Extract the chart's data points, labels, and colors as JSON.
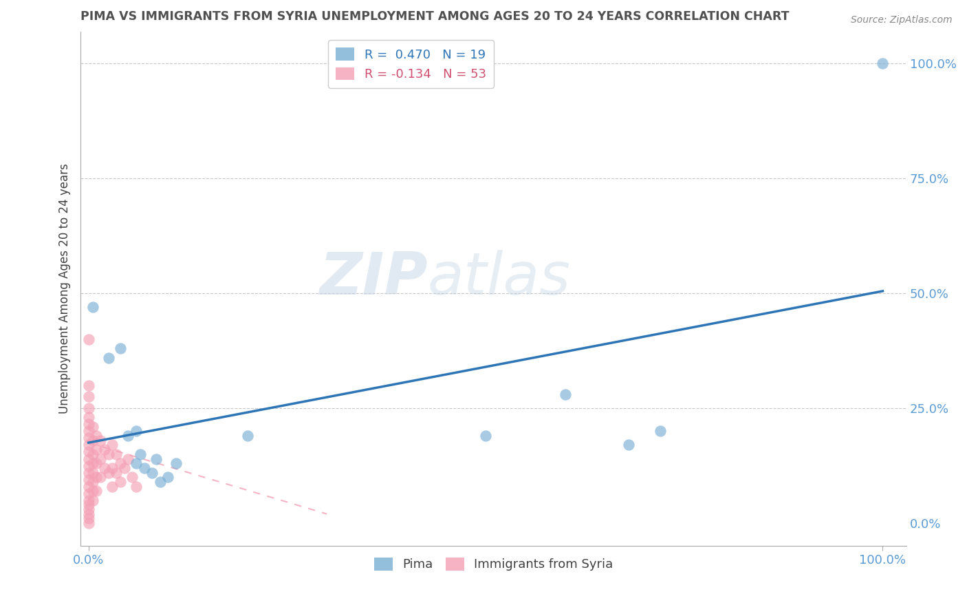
{
  "title": "PIMA VS IMMIGRANTS FROM SYRIA UNEMPLOYMENT AMONG AGES 20 TO 24 YEARS CORRELATION CHART",
  "source": "Source: ZipAtlas.com",
  "ylabel": "Unemployment Among Ages 20 to 24 years",
  "watermark": "ZIPatlas",
  "pima_points": [
    [
      0.005,
      0.47
    ],
    [
      0.025,
      0.36
    ],
    [
      0.04,
      0.38
    ],
    [
      0.05,
      0.19
    ],
    [
      0.06,
      0.2
    ],
    [
      0.06,
      0.13
    ],
    [
      0.065,
      0.15
    ],
    [
      0.07,
      0.12
    ],
    [
      0.08,
      0.11
    ],
    [
      0.085,
      0.14
    ],
    [
      0.09,
      0.09
    ],
    [
      0.1,
      0.1
    ],
    [
      0.11,
      0.13
    ],
    [
      0.2,
      0.19
    ],
    [
      0.5,
      0.19
    ],
    [
      0.6,
      0.28
    ],
    [
      0.68,
      0.17
    ],
    [
      0.72,
      0.2
    ],
    [
      1.0,
      1.0
    ]
  ],
  "syria_points": [
    [
      0.0,
      0.4
    ],
    [
      0.0,
      0.3
    ],
    [
      0.0,
      0.275
    ],
    [
      0.0,
      0.25
    ],
    [
      0.0,
      0.23
    ],
    [
      0.0,
      0.215
    ],
    [
      0.0,
      0.2
    ],
    [
      0.0,
      0.185
    ],
    [
      0.0,
      0.17
    ],
    [
      0.0,
      0.155
    ],
    [
      0.0,
      0.14
    ],
    [
      0.0,
      0.125
    ],
    [
      0.0,
      0.11
    ],
    [
      0.0,
      0.095
    ],
    [
      0.0,
      0.08
    ],
    [
      0.0,
      0.065
    ],
    [
      0.0,
      0.05
    ],
    [
      0.0,
      0.04
    ],
    [
      0.0,
      0.03
    ],
    [
      0.0,
      0.02
    ],
    [
      0.0,
      0.01
    ],
    [
      0.0,
      0.0
    ],
    [
      0.005,
      0.21
    ],
    [
      0.005,
      0.18
    ],
    [
      0.005,
      0.15
    ],
    [
      0.005,
      0.13
    ],
    [
      0.005,
      0.11
    ],
    [
      0.005,
      0.09
    ],
    [
      0.005,
      0.07
    ],
    [
      0.005,
      0.05
    ],
    [
      0.01,
      0.19
    ],
    [
      0.01,
      0.16
    ],
    [
      0.01,
      0.13
    ],
    [
      0.01,
      0.1
    ],
    [
      0.01,
      0.07
    ],
    [
      0.015,
      0.18
    ],
    [
      0.015,
      0.14
    ],
    [
      0.015,
      0.1
    ],
    [
      0.02,
      0.16
    ],
    [
      0.02,
      0.12
    ],
    [
      0.025,
      0.15
    ],
    [
      0.025,
      0.11
    ],
    [
      0.03,
      0.17
    ],
    [
      0.03,
      0.12
    ],
    [
      0.03,
      0.08
    ],
    [
      0.035,
      0.15
    ],
    [
      0.035,
      0.11
    ],
    [
      0.04,
      0.13
    ],
    [
      0.04,
      0.09
    ],
    [
      0.045,
      0.12
    ],
    [
      0.05,
      0.14
    ],
    [
      0.055,
      0.1
    ],
    [
      0.06,
      0.08
    ]
  ],
  "pima_line": [
    0.0,
    1.0
  ],
  "pima_line_y": [
    0.175,
    0.505
  ],
  "syria_line": [
    0.0,
    0.3
  ],
  "syria_line_y": [
    0.175,
    0.02
  ],
  "pima_color": "#7aafd4",
  "syria_color": "#f4a0b5",
  "pima_line_color": "#2e75b6",
  "syria_line_color": "#f4a0b5",
  "title_color": "#505050",
  "tick_label_color": "#5b9bd5",
  "grid_color": "#c8c8c8",
  "background_color": "#ffffff",
  "r_pima": 0.47,
  "n_pima": 19,
  "r_syria": -0.134,
  "n_syria": 53,
  "xlim": [
    -0.01,
    1.03
  ],
  "ylim": [
    -0.05,
    1.07
  ],
  "yticks": [
    0.0,
    0.25,
    0.5,
    0.75,
    1.0
  ],
  "ytick_labels": [
    "0.0%",
    "25.0%",
    "50.0%",
    "75.0%",
    "100.0%"
  ],
  "xticks": [
    0.0,
    1.0
  ],
  "xtick_labels": [
    "0.0%",
    "100.0%"
  ]
}
